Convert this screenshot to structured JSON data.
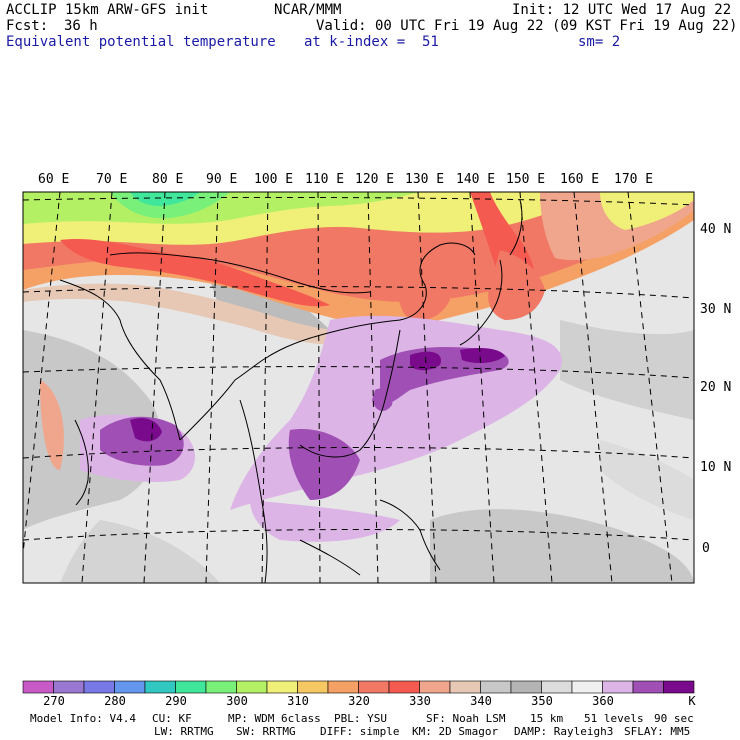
{
  "header": {
    "model": "ACCLIP 15km ARW-GFS init",
    "org": "NCAR/MMM",
    "init": "Init: 12 UTC Wed 17 Aug 22",
    "fcst_label": "Fcst:",
    "fcst_value": "36 h",
    "valid": "Valid: 00 UTC Fri 19 Aug 22 (09 KST Fri 19 Aug 22)",
    "field": "Equivalent potential temperature",
    "level": "at k-index =  51",
    "smooth": "sm= 2"
  },
  "map": {
    "lon_labels": [
      "60 E",
      "70 E",
      "80 E",
      "90 E",
      "100 E",
      "110 E",
      "120 E",
      "130 E",
      "140 E",
      "150 E",
      "160 E",
      "170 E"
    ],
    "lat_labels": [
      "40 N",
      "30 N",
      "20 N",
      "10 N",
      "0"
    ]
  },
  "colorbar": {
    "colors": [
      "#c85ac8",
      "#9a78d2",
      "#7878e6",
      "#6496ee",
      "#30c8c0",
      "#40e69a",
      "#78f07a",
      "#b4f064",
      "#f0f078",
      "#f5c864",
      "#f5a064",
      "#f07864",
      "#f55a50",
      "#f0a68c",
      "#e6c8b4",
      "#c8c8c8",
      "#b4b4b4",
      "#dcdcdc",
      "#f0f0f0",
      "#dcb4e6",
      "#a050b4",
      "#7a0a8c"
    ],
    "labels": [
      "270",
      "280",
      "290",
      "300",
      "310",
      "320",
      "330",
      "340",
      "350",
      "360"
    ],
    "unit": "K"
  },
  "footer": {
    "line1": [
      "Model Info: V4.4",
      "CU: KF",
      "MP: WDM 6class",
      "PBL: YSU",
      "SF: Noah LSM",
      "15 km",
      "51 levels",
      "90 sec"
    ],
    "line2": [
      "LW: RRTMG",
      "SW: RRTMG",
      "DIFF: simple",
      "KM: 2D Smagor",
      "DAMP: Rayleigh3",
      "SFLAY: MM5"
    ]
  }
}
